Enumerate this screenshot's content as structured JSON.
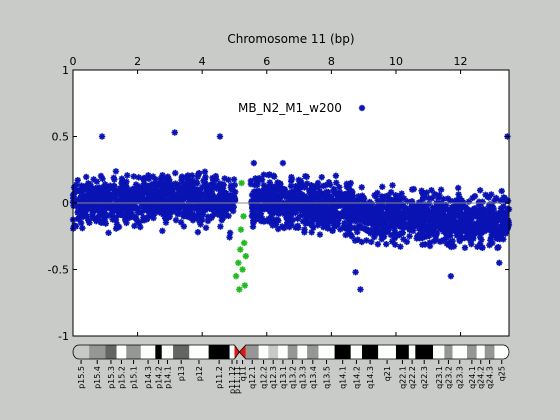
{
  "chart_data": {
    "type": "scatter",
    "title": "Chromosome 11 (bp)",
    "xlim": [
      0,
      13.5
    ],
    "ylim": [
      -1,
      1
    ],
    "x_ticks": [
      0,
      2,
      4,
      6,
      8,
      10,
      12
    ],
    "y_ticks": [
      -1,
      -0.5,
      0,
      0.5,
      1
    ],
    "x_tick_labels": [
      "0",
      "2",
      "4",
      "6",
      "8",
      "10",
      "12"
    ],
    "y_tick_labels": [
      "-1",
      "-0.5",
      "0",
      "0.5",
      "1"
    ],
    "x_axis_position": "top",
    "grid": false,
    "reference_line": {
      "y": 0
    },
    "legend": {
      "entries": [
        "MB_N2_M1_w200"
      ],
      "placement": "top-right"
    },
    "series": [
      {
        "name": "MB_N2_M1_w200",
        "color": "#0a14b4",
        "marker": "asterisk",
        "band_center": [
          [
            0,
            0.0
          ],
          [
            3,
            0.03
          ],
          [
            4.7,
            0.02
          ],
          [
            5.05,
            -0.02
          ],
          [
            5.4,
            0.03
          ],
          [
            7,
            0.0
          ],
          [
            8.4,
            -0.05
          ],
          [
            9,
            -0.1
          ],
          [
            13.5,
            -0.15
          ]
        ],
        "band_half_width": 0.27,
        "outliers": [
          {
            "x": 0.9,
            "y": 0.5
          },
          {
            "x": 3.15,
            "y": 0.53
          },
          {
            "x": 4.55,
            "y": 0.5
          },
          {
            "x": 5.6,
            "y": 0.3
          },
          {
            "x": 6.5,
            "y": 0.3
          },
          {
            "x": 8.6,
            "y": 0.15
          },
          {
            "x": 11.4,
            "y": 0.1
          },
          {
            "x": 13.45,
            "y": 0.5
          },
          {
            "x": 8.9,
            "y": -0.65
          },
          {
            "x": 8.75,
            "y": -0.52
          },
          {
            "x": 11.7,
            "y": -0.55
          },
          {
            "x": 13.2,
            "y": -0.45
          }
        ]
      },
      {
        "name": "",
        "color": "#22bb22",
        "marker": "asterisk",
        "x_range": [
          5.05,
          5.5
        ],
        "points": [
          {
            "x": 5.15,
            "y": -0.65
          },
          {
            "x": 5.32,
            "y": -0.62
          },
          {
            "x": 5.05,
            "y": -0.55
          },
          {
            "x": 5.12,
            "y": -0.45
          },
          {
            "x": 5.25,
            "y": -0.5
          },
          {
            "x": 5.18,
            "y": -0.35
          },
          {
            "x": 5.3,
            "y": -0.3
          },
          {
            "x": 5.2,
            "y": -0.2
          },
          {
            "x": 5.28,
            "y": -0.1
          },
          {
            "x": 5.22,
            "y": 0.15
          },
          {
            "x": 5.35,
            "y": -0.4
          }
        ]
      }
    ],
    "ideogram": {
      "bands": [
        {
          "name": "p15.5",
          "start": 0.0,
          "end": 0.5,
          "stain": "gpos25"
        },
        {
          "name": "p15.4",
          "start": 0.5,
          "end": 1.0,
          "stain": "gpos50"
        },
        {
          "name": "p15.3",
          "start": 1.0,
          "end": 1.35,
          "stain": "gpos75"
        },
        {
          "name": "p15.2",
          "start": 1.35,
          "end": 1.65,
          "stain": "gneg"
        },
        {
          "name": "p15.1",
          "start": 1.65,
          "end": 2.1,
          "stain": "gpos50"
        },
        {
          "name": "p14.3",
          "start": 2.1,
          "end": 2.55,
          "stain": "gneg"
        },
        {
          "name": "p14.2",
          "start": 2.55,
          "end": 2.75,
          "stain": "gpos100"
        },
        {
          "name": "p14.1",
          "start": 2.75,
          "end": 3.1,
          "stain": "gneg"
        },
        {
          "name": "p13",
          "start": 3.1,
          "end": 3.6,
          "stain": "gpos75"
        },
        {
          "name": "p12",
          "start": 3.6,
          "end": 4.2,
          "stain": "gneg"
        },
        {
          "name": "p11.2",
          "start": 4.2,
          "end": 4.85,
          "stain": "gpos100"
        },
        {
          "name": "p11.12",
          "start": 4.85,
          "end": 5.0,
          "stain": "gneg"
        },
        {
          "name": "p11.11",
          "start": 5.0,
          "end": 5.15,
          "stain": "acen"
        },
        {
          "name": "q11",
          "start": 5.15,
          "end": 5.35,
          "stain": "acen"
        },
        {
          "name": "q12.1",
          "start": 5.35,
          "end": 5.75,
          "stain": "gpos50"
        },
        {
          "name": "q12.2",
          "start": 5.75,
          "end": 6.05,
          "stain": "gneg"
        },
        {
          "name": "q12.3",
          "start": 6.05,
          "end": 6.35,
          "stain": "gpos25"
        },
        {
          "name": "q13.1",
          "start": 6.35,
          "end": 6.65,
          "stain": "gneg"
        },
        {
          "name": "q13.2",
          "start": 6.65,
          "end": 6.95,
          "stain": "gpos50"
        },
        {
          "name": "q13.3",
          "start": 6.95,
          "end": 7.25,
          "stain": "gneg"
        },
        {
          "name": "q13.4",
          "start": 7.25,
          "end": 7.6,
          "stain": "gpos50"
        },
        {
          "name": "q13.5",
          "start": 7.6,
          "end": 8.1,
          "stain": "gneg"
        },
        {
          "name": "q14.1",
          "start": 8.1,
          "end": 8.6,
          "stain": "gpos100"
        },
        {
          "name": "q14.2",
          "start": 8.6,
          "end": 8.95,
          "stain": "gneg"
        },
        {
          "name": "q14.3",
          "start": 8.95,
          "end": 9.45,
          "stain": "gpos100"
        },
        {
          "name": "q21",
          "start": 9.45,
          "end": 10.0,
          "stain": "gneg"
        },
        {
          "name": "q22.1",
          "start": 10.0,
          "end": 10.4,
          "stain": "gpos100"
        },
        {
          "name": "q22.2",
          "start": 10.4,
          "end": 10.6,
          "stain": "gneg"
        },
        {
          "name": "q22.3",
          "start": 10.6,
          "end": 11.15,
          "stain": "gpos100"
        },
        {
          "name": "q23.1",
          "start": 11.15,
          "end": 11.5,
          "stain": "gneg"
        },
        {
          "name": "q23.2",
          "start": 11.5,
          "end": 11.75,
          "stain": "gpos50"
        },
        {
          "name": "q23.3",
          "start": 11.75,
          "end": 12.2,
          "stain": "gneg"
        },
        {
          "name": "q24.1",
          "start": 12.2,
          "end": 12.5,
          "stain": "gpos50"
        },
        {
          "name": "q24.2",
          "start": 12.5,
          "end": 12.75,
          "stain": "gneg"
        },
        {
          "name": "q24.3",
          "start": 12.75,
          "end": 13.05,
          "stain": "gpos50"
        },
        {
          "name": "q25",
          "start": 13.05,
          "end": 13.5,
          "stain": "gneg"
        }
      ],
      "stain_colors": {
        "gneg": "#ffffff",
        "gpos25": "#c8c8c8",
        "gpos50": "#969696",
        "gpos75": "#646464",
        "gpos100": "#000000",
        "acen": "#e01818"
      }
    }
  }
}
